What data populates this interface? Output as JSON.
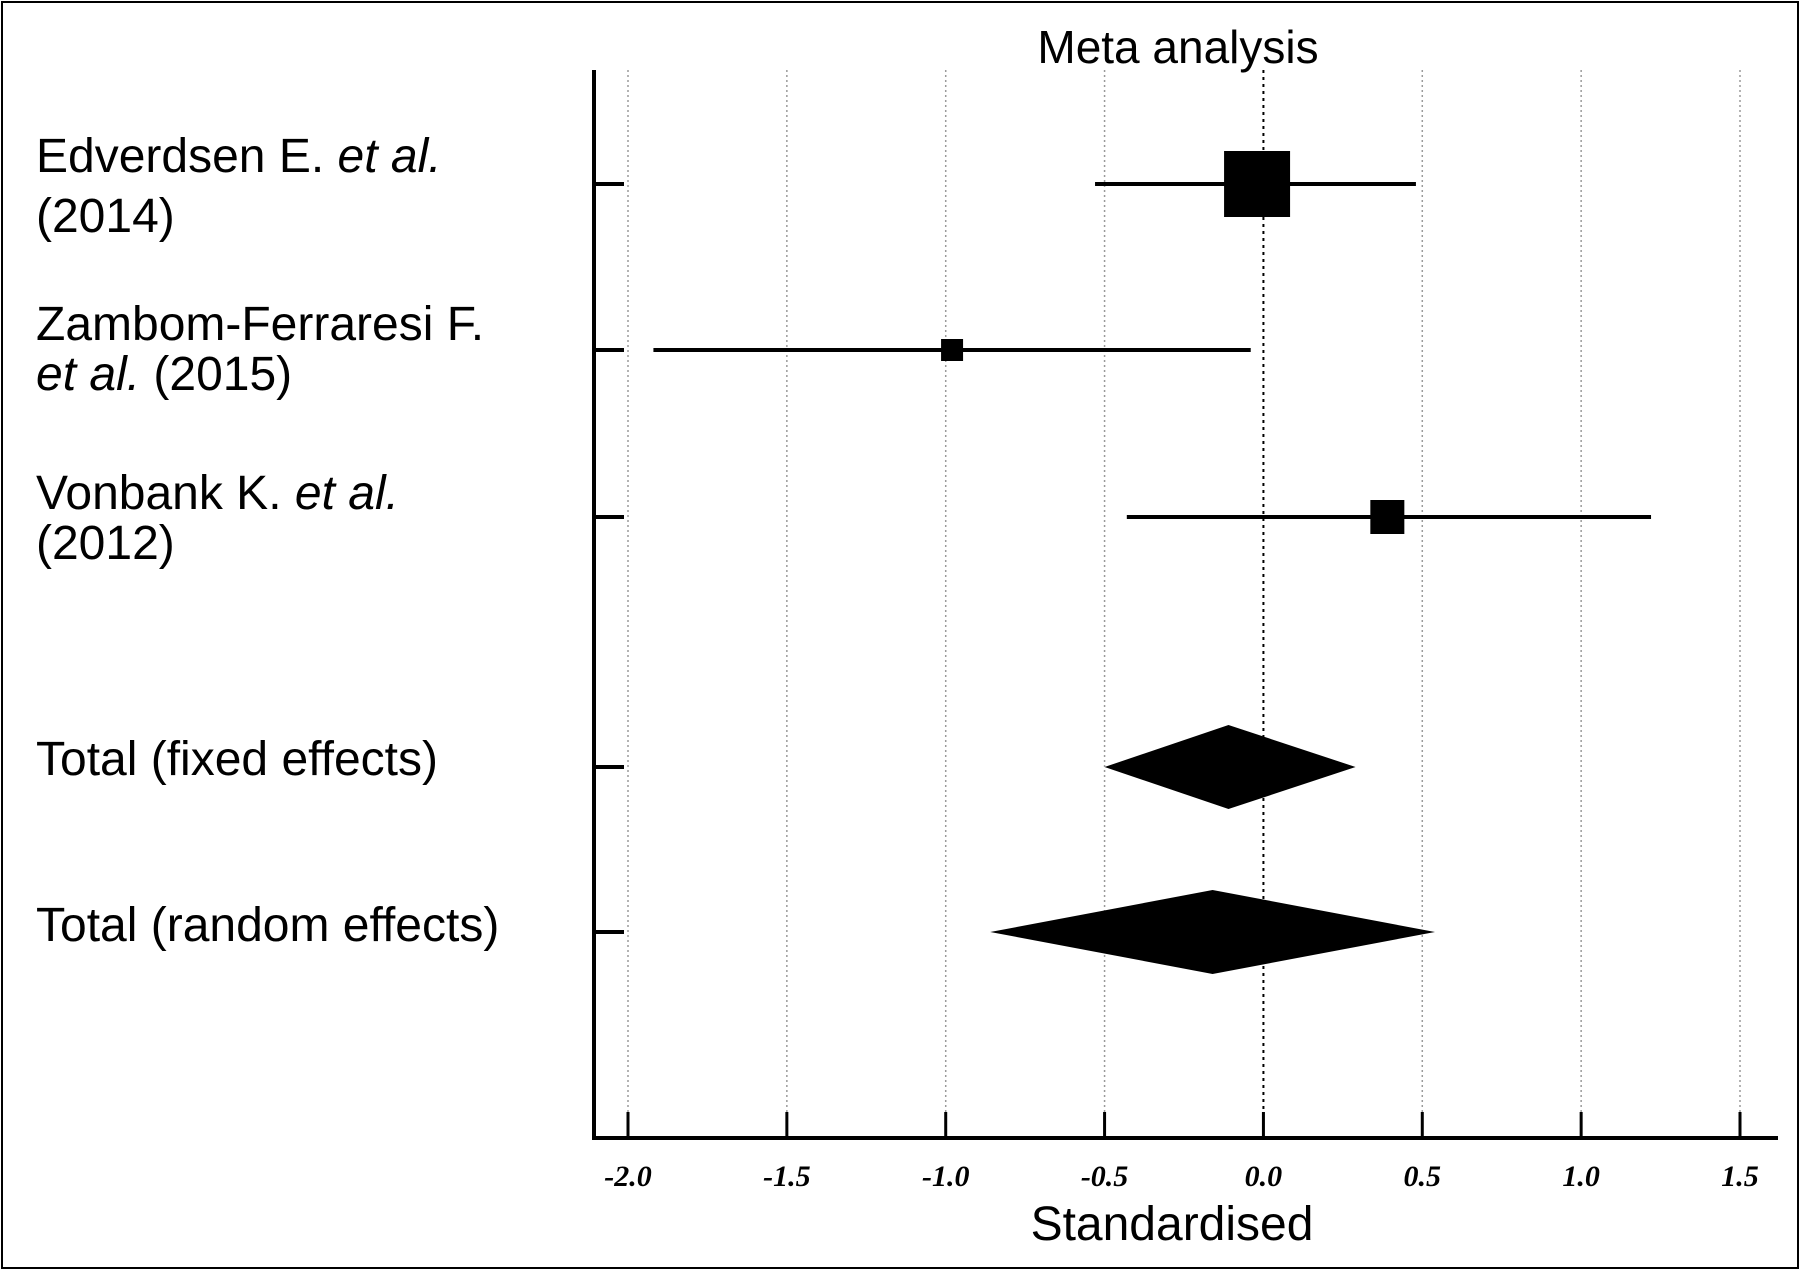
{
  "chart_data": {
    "type": "forest",
    "title": "Meta analysis",
    "xlabel": "Standardised",
    "xlim": [
      -2.1,
      1.6
    ],
    "x_ticks": [
      -2.0,
      -1.5,
      -1.0,
      -0.5,
      0.0,
      0.5,
      1.0,
      1.5
    ],
    "x_tick_labels": [
      "-2.0",
      "-1.5",
      "-1.0",
      "-0.5",
      "0.0",
      "0.5",
      "1.0",
      "1.5"
    ],
    "reference_line": 0.0,
    "grid": true,
    "studies": [
      {
        "name": "Edverdsen E. et al. (2014)",
        "effect": -0.02,
        "ci_low": -0.53,
        "ci_high": 0.48,
        "weight": "large"
      },
      {
        "name": "Zambom-Ferraresi F. et al. (2015)",
        "effect": -0.98,
        "ci_low": -1.92,
        "ci_high": -0.04,
        "weight": "small"
      },
      {
        "name": "Vonbank K. et al. (2012)",
        "effect": 0.39,
        "ci_low": -0.43,
        "ci_high": 1.22,
        "weight": "medium"
      }
    ],
    "pooled": [
      {
        "name": "Total (fixed effects)",
        "effect": -0.11,
        "ci_low": -0.5,
        "ci_high": 0.29
      },
      {
        "name": "Total (random effects)",
        "effect": -0.16,
        "ci_low": -0.86,
        "ci_high": 0.54
      }
    ]
  },
  "labels": {
    "row1_line1_plain": "Edverdsen E. ",
    "row1_line1_ital": "et al.",
    "row1_line2": "(2014)",
    "row2_line1": "Zambom-Ferraresi F.",
    "row2_line2_ital": "et al.",
    "row2_line2_plain": " (2015)",
    "row3_line1_plain": "Vonbank K. ",
    "row3_line1_ital": "et al.",
    "row3_line2": "(2012)",
    "row4": "Total (fixed effects)",
    "row5": "Total (random effects)"
  }
}
